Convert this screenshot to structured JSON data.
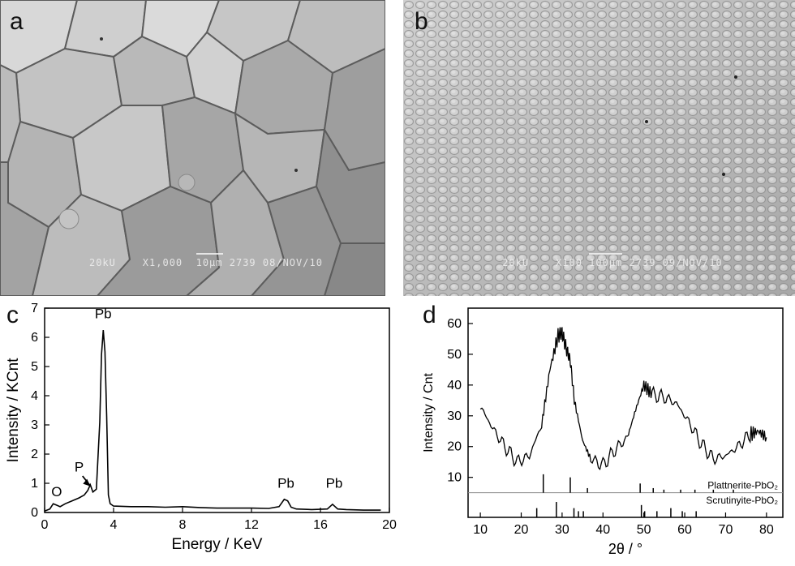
{
  "panels": {
    "a": {
      "letter": "a",
      "caption": {
        "kv": "20kU",
        "mag": "X1,000",
        "scale": "10µm",
        "id": "2739",
        "date": "08/NOV/10"
      }
    },
    "b": {
      "letter": "b",
      "caption": {
        "kv": "20kU",
        "mag": "X100",
        "scale": "100µm",
        "id": "2739",
        "date": "09/NOV/10"
      }
    },
    "c": {
      "letter": "c"
    },
    "d": {
      "letter": "d"
    }
  },
  "chart_data": [
    {
      "panel": "c",
      "type": "line",
      "title": "",
      "xlabel": "Energy / KeV",
      "ylabel": "Intensity / KCnt",
      "xlim": [
        0,
        20
      ],
      "ylim": [
        0,
        7
      ],
      "xticks": [
        0,
        4,
        8,
        12,
        16,
        20
      ],
      "yticks": [
        0,
        1,
        2,
        3,
        4,
        5,
        6,
        7
      ],
      "grid": false,
      "series": [
        {
          "x": [
            0,
            0.3,
            0.5,
            0.7,
            0.9,
            1.2,
            1.6,
            2.0,
            2.3,
            2.5,
            2.65,
            2.8,
            3.0,
            3.2,
            3.3,
            3.4,
            3.5,
            3.6,
            3.7,
            3.8,
            4.0,
            5,
            6,
            7,
            8,
            9,
            10,
            11,
            12,
            13,
            13.6,
            13.9,
            14.1,
            14.3,
            14.6,
            15.5,
            16.4,
            16.7,
            17.0,
            17.5,
            18.5,
            19.5
          ],
          "y": [
            0.05,
            0.12,
            0.3,
            0.25,
            0.2,
            0.3,
            0.4,
            0.5,
            0.6,
            0.75,
            0.95,
            0.7,
            0.8,
            3.1,
            5.4,
            6.25,
            5.5,
            3.3,
            0.6,
            0.3,
            0.22,
            0.2,
            0.2,
            0.18,
            0.2,
            0.17,
            0.15,
            0.15,
            0.15,
            0.14,
            0.2,
            0.45,
            0.4,
            0.18,
            0.12,
            0.1,
            0.12,
            0.28,
            0.12,
            0.1,
            0.08,
            0.08
          ]
        }
      ],
      "annotations": [
        {
          "text": "O",
          "x": 0.7,
          "y": 0.55
        },
        {
          "text": "P",
          "x": 2.0,
          "y": 1.4
        },
        {
          "text": "Pb",
          "x": 3.4,
          "y": 6.65
        },
        {
          "text": "Pb",
          "x": 14.0,
          "y": 0.85
        },
        {
          "text": "Pb",
          "x": 16.8,
          "y": 0.85
        }
      ]
    },
    {
      "panel": "d",
      "type": "line",
      "title": "",
      "xlabel": "2θ / °",
      "ylabel": "Intensity / Cnt",
      "xlim": [
        7,
        84
      ],
      "ylim": [
        -3,
        65
      ],
      "xticks": [
        10,
        20,
        30,
        40,
        50,
        60,
        70,
        80
      ],
      "yticks": [
        10,
        20,
        30,
        40,
        50,
        60
      ],
      "grid": false,
      "series": [
        {
          "x": [
            10,
            13,
            16,
            19,
            22,
            25,
            27,
            29,
            30,
            31,
            32,
            33,
            35,
            37,
            40,
            43,
            46,
            48,
            50,
            52,
            55,
            58,
            61,
            64,
            67,
            70,
            73,
            76,
            78,
            80
          ],
          "y": [
            33,
            26,
            20,
            15,
            17,
            27,
            45,
            56,
            57,
            52,
            48,
            35,
            22,
            16,
            14,
            19,
            23,
            32,
            40,
            37,
            36,
            34,
            28,
            21,
            16,
            17,
            20,
            24,
            25,
            23
          ]
        }
      ],
      "reference_separator_y": 5,
      "references": [
        {
          "name": "Plattnerite-PbO₂",
          "lines": [
            {
              "x": 25.4,
              "y": 11
            },
            {
              "x": 32.0,
              "y": 10
            },
            {
              "x": 36.2,
              "y": 6.5
            },
            {
              "x": 49.1,
              "y": 8
            },
            {
              "x": 52.3,
              "y": 6.5
            },
            {
              "x": 54.9,
              "y": 6
            },
            {
              "x": 59.0,
              "y": 6
            },
            {
              "x": 62.5,
              "y": 6
            },
            {
              "x": 67.0,
              "y": 6
            },
            {
              "x": 71.9,
              "y": 6
            }
          ]
        },
        {
          "name": "Scrutinyite-PbO₂",
          "lines": [
            {
              "x": 23.8,
              "y": 0
            },
            {
              "x": 28.6,
              "y": 2
            },
            {
              "x": 32.9,
              "y": 0
            },
            {
              "x": 34.0,
              "y": -1
            },
            {
              "x": 35.2,
              "y": -1
            },
            {
              "x": 49.4,
              "y": 1
            },
            {
              "x": 50.2,
              "y": -1
            },
            {
              "x": 53.2,
              "y": -1
            },
            {
              "x": 56.6,
              "y": 0
            },
            {
              "x": 59.4,
              "y": -1
            },
            {
              "x": 62.8,
              "y": -1
            }
          ]
        }
      ]
    }
  ]
}
